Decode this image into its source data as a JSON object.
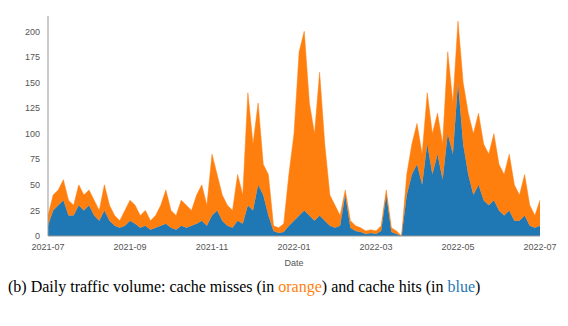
{
  "chart_data": {
    "type": "area",
    "stacked": true,
    "x_label": "Date",
    "categories": [
      "2021-07",
      null,
      null,
      null,
      null,
      null,
      null,
      null,
      null,
      null,
      null,
      null,
      null,
      null,
      null,
      null,
      "2021-09",
      null,
      null,
      null,
      null,
      null,
      null,
      null,
      null,
      null,
      null,
      null,
      null,
      null,
      null,
      null,
      "2021-11",
      null,
      null,
      null,
      null,
      null,
      null,
      null,
      null,
      null,
      null,
      null,
      null,
      null,
      null,
      null,
      "2022-01",
      null,
      null,
      null,
      null,
      null,
      null,
      null,
      null,
      null,
      null,
      null,
      null,
      null,
      null,
      null,
      "2022-03",
      null,
      null,
      null,
      null,
      null,
      null,
      null,
      null,
      null,
      null,
      null,
      null,
      null,
      null,
      null,
      "2022-05",
      null,
      null,
      null,
      null,
      null,
      null,
      null,
      null,
      null,
      null,
      null,
      null,
      null,
      null,
      null,
      "2022-07"
    ],
    "series": [
      {
        "name": "cache hits",
        "color": "#1f77b4",
        "values": [
          10,
          25,
          30,
          35,
          20,
          20,
          30,
          25,
          30,
          20,
          15,
          25,
          15,
          10,
          8,
          10,
          15,
          12,
          8,
          10,
          6,
          8,
          10,
          12,
          8,
          6,
          10,
          8,
          10,
          12,
          15,
          10,
          20,
          25,
          15,
          10,
          8,
          15,
          12,
          30,
          25,
          50,
          40,
          20,
          5,
          3,
          4,
          10,
          15,
          20,
          25,
          20,
          15,
          20,
          15,
          10,
          8,
          10,
          40,
          8,
          5,
          4,
          2,
          3,
          2,
          5,
          40,
          4,
          2,
          0,
          40,
          60,
          70,
          50,
          90,
          60,
          80,
          55,
          100,
          80,
          150,
          90,
          60,
          40,
          50,
          35,
          30,
          35,
          25,
          20,
          25,
          15,
          15,
          20,
          10,
          8,
          10
        ]
      },
      {
        "name": "cache misses",
        "color": "#ff7f0e",
        "values": [
          10,
          15,
          15,
          20,
          15,
          10,
          20,
          15,
          15,
          15,
          10,
          25,
          15,
          10,
          7,
          15,
          20,
          18,
          12,
          15,
          9,
          12,
          20,
          33,
          17,
          14,
          25,
          22,
          15,
          28,
          35,
          20,
          60,
          35,
          25,
          20,
          17,
          45,
          28,
          110,
          65,
          80,
          30,
          40,
          5,
          5,
          8,
          50,
          85,
          160,
          175,
          110,
          85,
          140,
          75,
          30,
          22,
          10,
          5,
          7,
          5,
          4,
          3,
          3,
          3,
          5,
          5,
          4,
          3,
          0,
          20,
          30,
          40,
          30,
          50,
          40,
          40,
          35,
          80,
          50,
          60,
          60,
          60,
          60,
          70,
          55,
          50,
          65,
          45,
          40,
          55,
          35,
          25,
          40,
          20,
          12,
          25
        ]
      }
    ],
    "ylim": [
      0,
      215
    ],
    "yticks": [
      0,
      25,
      50,
      75,
      100,
      125,
      150,
      175,
      200
    ],
    "caption": [
      {
        "text": "(b) Daily traffic volume: cache misses (in "
      },
      {
        "text": "orange",
        "color": "#ff7f0e"
      },
      {
        "text": ") and cache hits (in "
      },
      {
        "text": "blue",
        "color": "#1f77b4"
      },
      {
        "text": ")"
      }
    ]
  }
}
